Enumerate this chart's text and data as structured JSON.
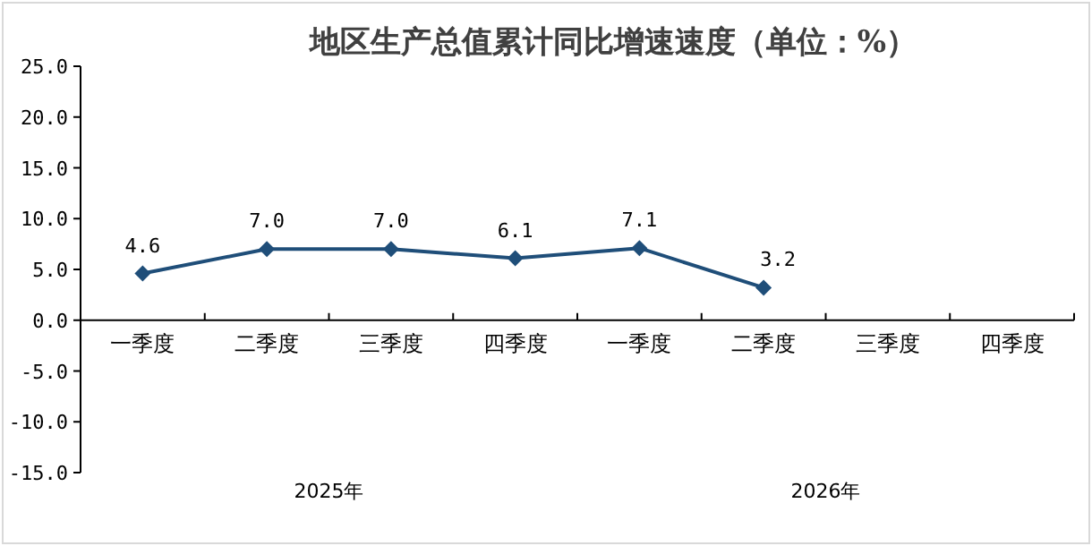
{
  "chart_data": {
    "type": "line",
    "title": "地区生产总值累计同比增速速度（单位：%）",
    "categories": [
      "一季度",
      "二季度",
      "三季度",
      "四季度",
      "一季度",
      "二季度",
      "三季度",
      "四季度"
    ],
    "series": [
      {
        "color": "#1f4e79",
        "values": [
          4.6,
          7.0,
          7.0,
          6.1,
          7.1,
          3.2,
          null,
          null
        ],
        "value_labels": [
          "4.6",
          "7.0",
          "7.0",
          "6.1",
          "7.1",
          "3.2",
          null,
          null
        ]
      }
    ],
    "annotations": [
      "2025年",
      "2026年"
    ],
    "ylim": [
      -15,
      25
    ],
    "yticks": [
      {
        "value": 25,
        "label": "25.0"
      },
      {
        "value": 20,
        "label": "20.0"
      },
      {
        "value": 15,
        "label": "15.0"
      },
      {
        "value": 10,
        "label": "10.0"
      },
      {
        "value": 5,
        "label": "5.0"
      },
      {
        "value": 0,
        "label": "0.0"
      },
      {
        "value": -5,
        "label": "-5.0"
      },
      {
        "value": -10,
        "label": "-10.0"
      },
      {
        "value": -15,
        "label": "-15.0"
      }
    ],
    "marker": "diamond",
    "line_style": "solid",
    "grid": false
  }
}
